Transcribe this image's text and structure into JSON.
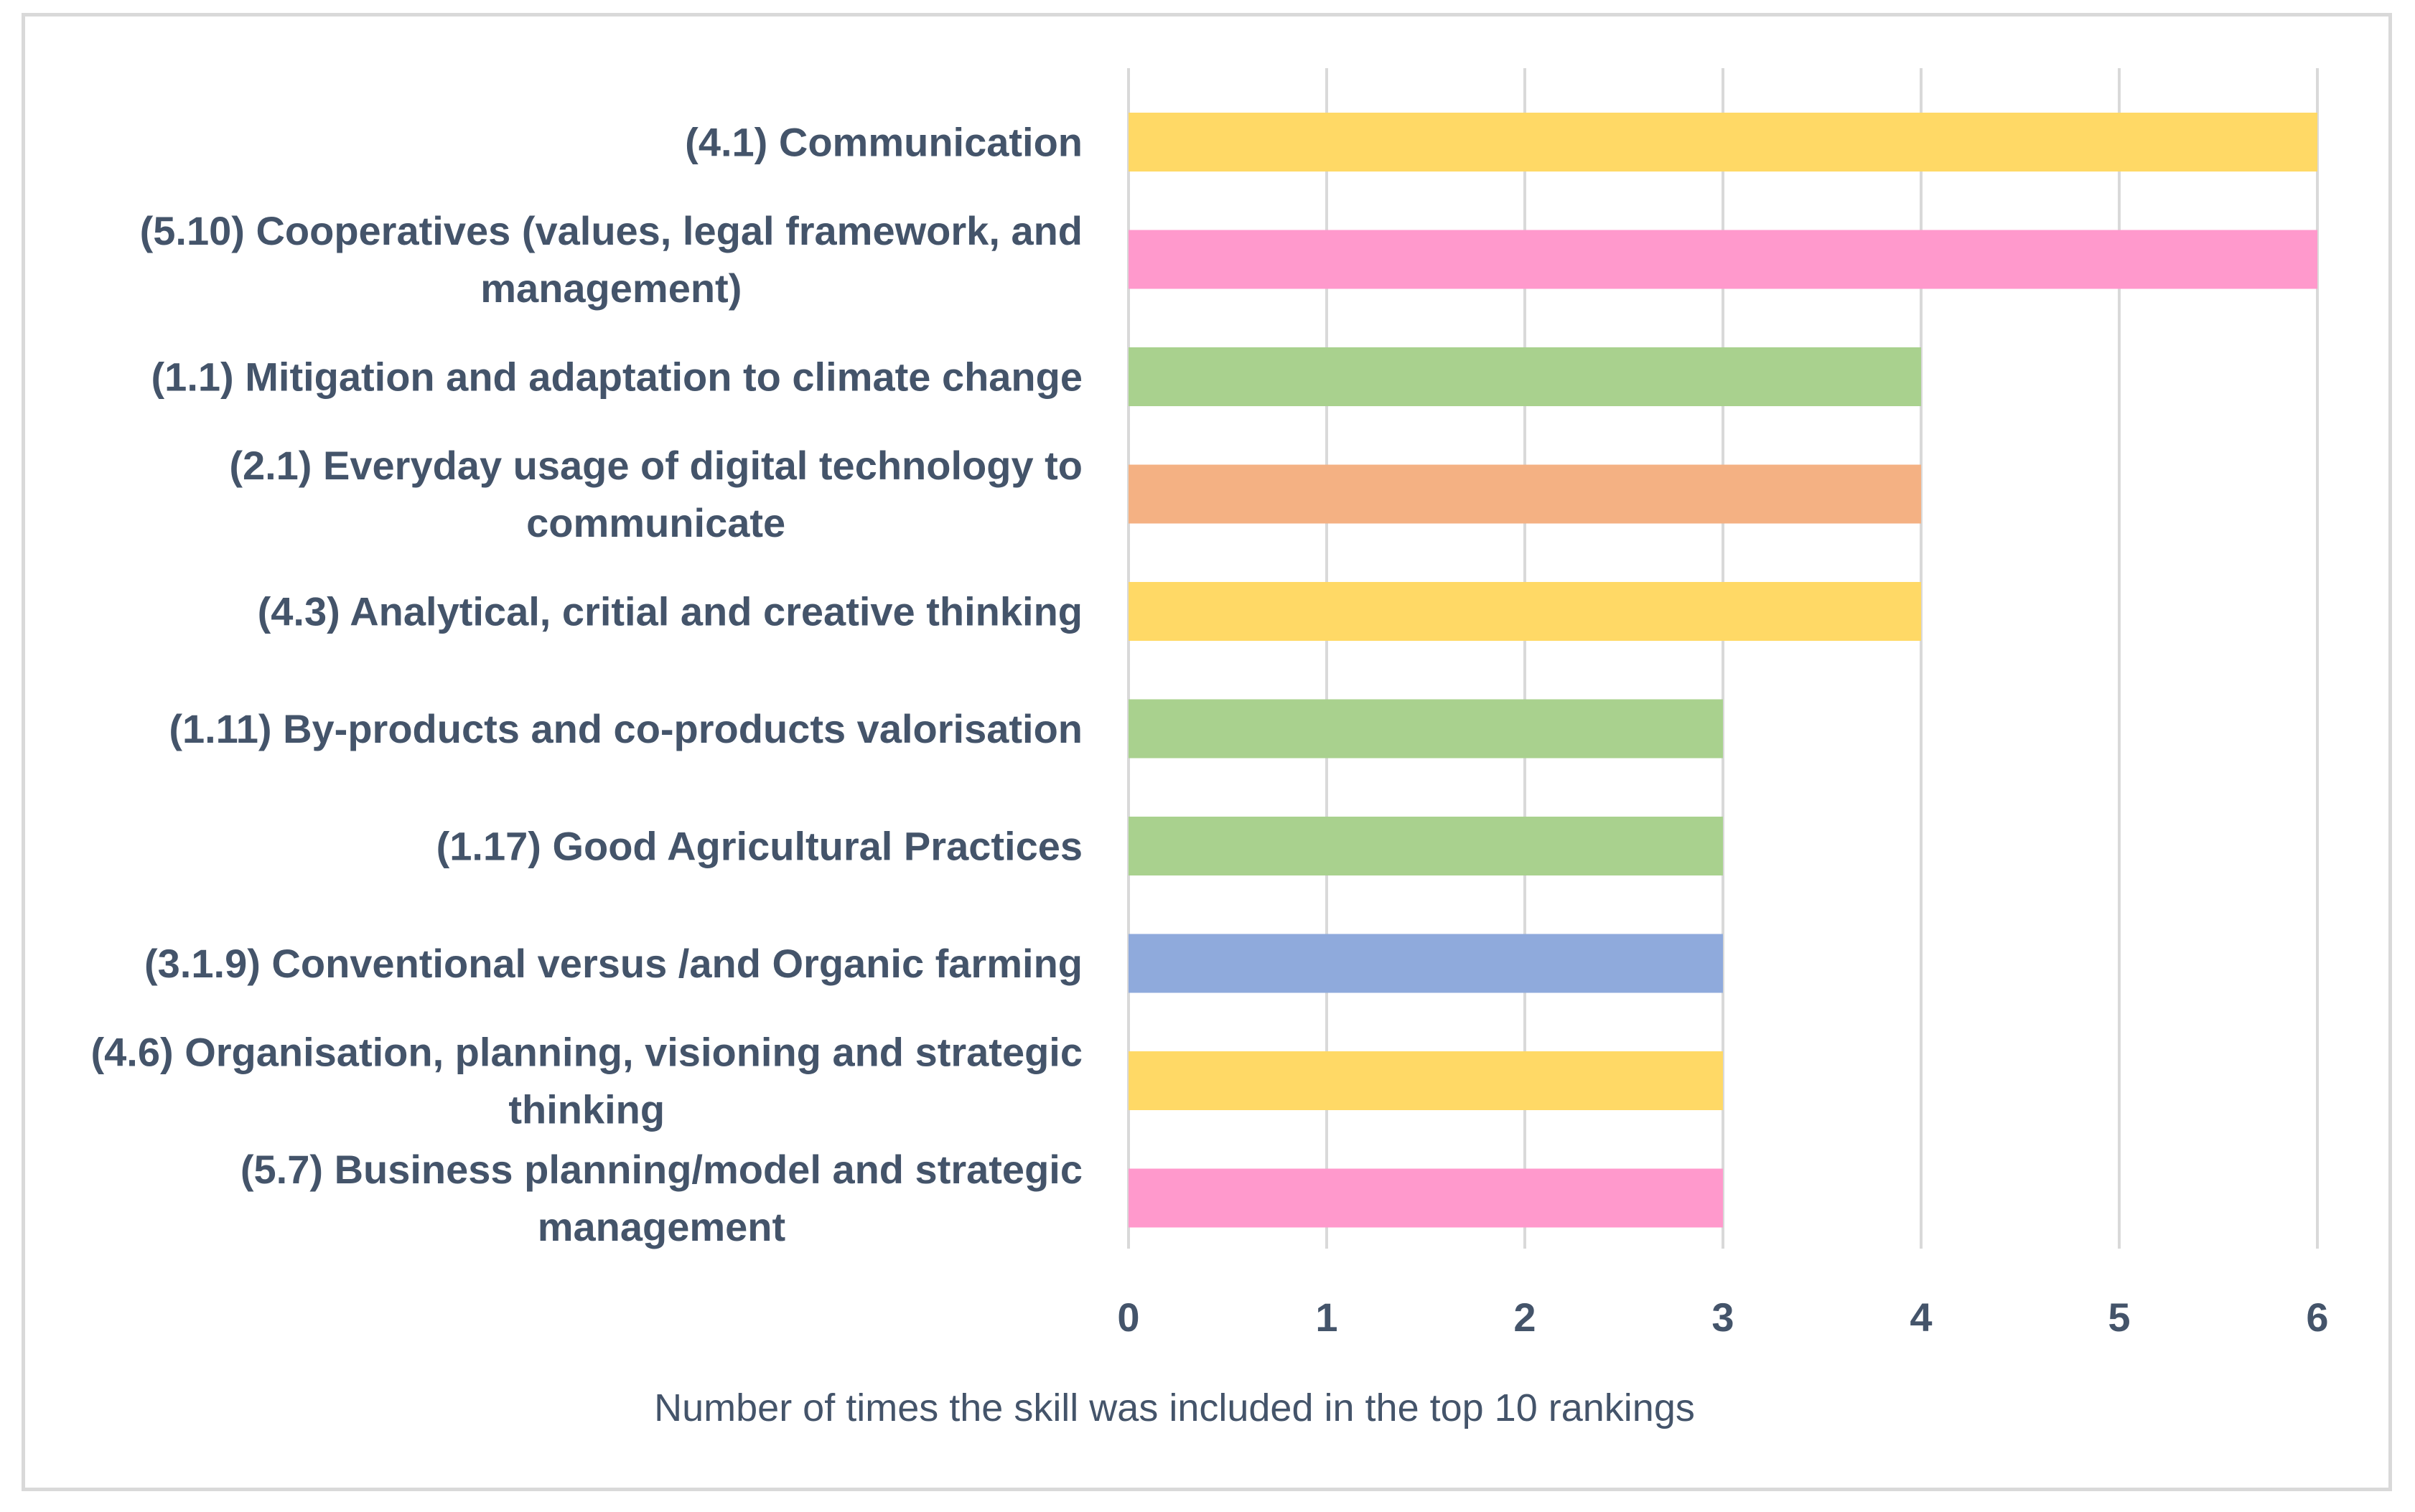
{
  "chart_data": {
    "type": "bar",
    "orientation": "horizontal",
    "title": "",
    "xlabel": "Number of  times the skill was included in the top 10 rankings",
    "ylabel": "",
    "xlim": [
      0,
      6
    ],
    "ticks": [
      0,
      1,
      2,
      3,
      4,
      5,
      6
    ],
    "grid": true,
    "categories": [
      {
        "lines": [
          "(4.1) Communication"
        ],
        "value": 6,
        "color": "#ffd966"
      },
      {
        "lines": [
          "(5.10) Cooperatives (values, legal framework, and",
          "management)"
        ],
        "value": 6,
        "color": "#ff99cc"
      },
      {
        "lines": [
          "(1.1) Mitigation and adaptation to climate change"
        ],
        "value": 4,
        "color": "#a9d18e"
      },
      {
        "lines": [
          "(2.1) Everyday usage of digital technology to",
          "communicate"
        ],
        "value": 4,
        "color": "#f4b183"
      },
      {
        "lines": [
          "(4.3) Analytical, critial and creative thinking"
        ],
        "value": 4,
        "color": "#ffd966"
      },
      {
        "lines": [
          "(1.11) By-products and co-products valorisation"
        ],
        "value": 3,
        "color": "#a9d18e"
      },
      {
        "lines": [
          "(1.17) Good Agricultural Practices"
        ],
        "value": 3,
        "color": "#a9d18e"
      },
      {
        "lines": [
          "(3.1.9) Conventional versus /and Organic farming"
        ],
        "value": 3,
        "color": "#8faadc"
      },
      {
        "lines": [
          "(4.6) Organisation, planning, visioning and strategic",
          "thinking"
        ],
        "value": 3,
        "color": "#ffd966"
      },
      {
        "lines": [
          "(5.7) Business planning/model and strategic",
          "management"
        ],
        "value": 3,
        "color": "#ff99cc"
      }
    ],
    "gridline_color": "#d9d9d9",
    "text_color": "#44546a"
  }
}
